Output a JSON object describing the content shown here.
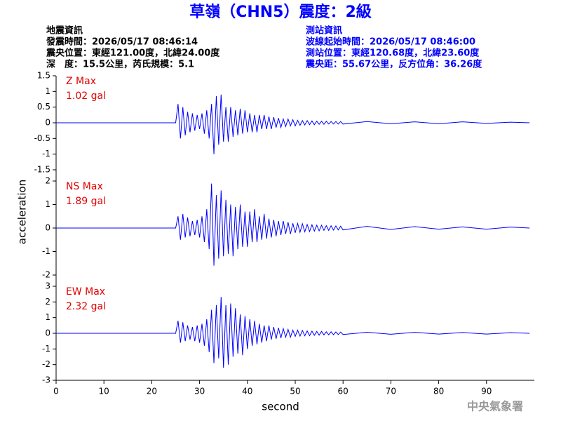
{
  "header": {
    "title": "草嶺（CHN5）震度：2級",
    "left": [
      "地震資訊",
      "發震時間：2026/05/17 08:46:14",
      "震央位置：東經121.00度，北緯24.00度",
      "深　度：15.5公里，芮氏規模：5.1"
    ],
    "right": [
      "測站資訊",
      "波線起始時間：2026/05/17 08:46:00",
      "測站位置：東經120.68度，北緯23.60度",
      "震央距：55.67公里，反方位角：36.26度"
    ],
    "watermark": "中央氣象署"
  },
  "chart_data": [
    {
      "type": "line",
      "label": "Z Max",
      "max_label": "1.02 gal",
      "x": [
        0,
        25,
        25.5,
        26,
        26.5,
        27,
        27.5,
        28,
        28.5,
        29,
        29.5,
        30,
        30.5,
        31,
        31.5,
        32,
        32.5,
        33,
        33.5,
        34,
        34.5,
        35,
        35.5,
        36,
        36.5,
        37,
        37.5,
        38,
        38.5,
        39,
        39.5,
        40,
        40.5,
        41,
        41.5,
        42,
        42.5,
        43,
        43.5,
        44,
        44.5,
        45,
        45.5,
        46,
        46.5,
        47,
        47.5,
        48,
        48.5,
        49,
        49.5,
        50,
        50.5,
        51,
        51.5,
        52,
        52.5,
        53,
        53.5,
        54,
        54.5,
        55,
        55.5,
        56,
        56.5,
        57,
        57.5,
        58,
        58.5,
        59,
        59.5,
        60,
        65,
        70,
        75,
        80,
        85,
        90,
        95,
        99
      ],
      "series": [
        {
          "color": "#0000ff",
          "values": [
            0,
            0,
            0.6,
            -0.5,
            0.5,
            -0.4,
            0.35,
            -0.3,
            0.3,
            -0.25,
            0.25,
            -0.2,
            0.3,
            -0.35,
            0.4,
            -0.5,
            0.6,
            -1.0,
            0.85,
            -0.7,
            0.9,
            -0.6,
            0.5,
            -0.6,
            0.5,
            -0.45,
            0.4,
            -0.4,
            0.45,
            -0.35,
            0.4,
            -0.3,
            0.3,
            -0.3,
            0.25,
            -0.3,
            0.25,
            -0.2,
            0.25,
            -0.2,
            0.2,
            -0.2,
            0.18,
            -0.15,
            0.15,
            -0.15,
            0.12,
            -0.12,
            0.12,
            -0.1,
            0.1,
            -0.1,
            0.08,
            -0.08,
            0.07,
            -0.07,
            0.07,
            -0.06,
            0.06,
            -0.06,
            0.05,
            -0.05,
            0.05,
            -0.05,
            0.05,
            -0.04,
            0.04,
            -0.04,
            0.04,
            -0.04,
            0.04,
            -0.04,
            0.04,
            -0.03,
            0.03,
            -0.03,
            0.03,
            -0.02,
            0.02,
            0
          ]
        }
      ],
      "xlim": [
        0,
        100
      ],
      "ylim": [
        -1.5,
        1.5
      ],
      "yticks": [
        -1.5,
        -1,
        -0.5,
        0,
        0.5,
        1,
        1.5
      ]
    },
    {
      "type": "line",
      "label": "NS Max",
      "max_label": "1.89 gal",
      "ylabel": "acceleration",
      "x": [
        0,
        25,
        25.5,
        26,
        26.5,
        27,
        27.5,
        28,
        28.5,
        29,
        29.5,
        30,
        30.5,
        31,
        31.5,
        32,
        32.5,
        33,
        33.5,
        34,
        34.5,
        35,
        35.5,
        36,
        36.5,
        37,
        37.5,
        38,
        38.5,
        39,
        39.5,
        40,
        40.5,
        41,
        41.5,
        42,
        42.5,
        43,
        43.5,
        44,
        44.5,
        45,
        45.5,
        46,
        46.5,
        47,
        47.5,
        48,
        48.5,
        49,
        49.5,
        50,
        50.5,
        51,
        51.5,
        52,
        52.5,
        53,
        53.5,
        54,
        54.5,
        55,
        55.5,
        56,
        56.5,
        57,
        57.5,
        58,
        58.5,
        59,
        59.5,
        60,
        65,
        70,
        75,
        80,
        85,
        90,
        95,
        99
      ],
      "series": [
        {
          "color": "#0000ff",
          "values": [
            0,
            0,
            0.5,
            -0.5,
            0.6,
            -0.4,
            0.45,
            -0.35,
            0.3,
            -0.3,
            0.35,
            -0.4,
            0.5,
            -0.6,
            0.8,
            -0.9,
            1.89,
            -1.6,
            1.4,
            -1.3,
            1.6,
            -1.2,
            1.2,
            -1.1,
            1.0,
            -1.2,
            0.9,
            -0.9,
            1.0,
            -0.8,
            0.7,
            -0.8,
            0.7,
            -0.6,
            0.8,
            -0.6,
            0.5,
            -0.5,
            0.6,
            -0.45,
            0.4,
            -0.4,
            0.35,
            -0.35,
            0.3,
            -0.3,
            0.3,
            -0.25,
            0.25,
            -0.25,
            0.2,
            -0.2,
            0.2,
            -0.18,
            0.18,
            -0.16,
            0.15,
            -0.15,
            0.14,
            -0.13,
            0.12,
            -0.12,
            0.12,
            -0.1,
            0.1,
            -0.1,
            0.1,
            -0.09,
            0.09,
            -0.08,
            0.08,
            -0.08,
            0.07,
            -0.06,
            0.06,
            -0.05,
            0.05,
            -0.05,
            0.04,
            0
          ]
        }
      ],
      "xlim": [
        0,
        100
      ],
      "ylim": [
        -2,
        2
      ],
      "yticks": [
        -2,
        -1,
        0,
        1,
        2
      ]
    },
    {
      "type": "line",
      "label": "EW Max",
      "max_label": "2.32 gal",
      "xlabel": "second",
      "x": [
        0,
        25,
        25.5,
        26,
        26.5,
        27,
        27.5,
        28,
        28.5,
        29,
        29.5,
        30,
        30.5,
        31,
        31.5,
        32,
        32.5,
        33,
        33.5,
        34,
        34.5,
        35,
        35.5,
        36,
        36.5,
        37,
        37.5,
        38,
        38.5,
        39,
        39.5,
        40,
        40.5,
        41,
        41.5,
        42,
        42.5,
        43,
        43.5,
        44,
        44.5,
        45,
        45.5,
        46,
        46.5,
        47,
        47.5,
        48,
        48.5,
        49,
        49.5,
        50,
        50.5,
        51,
        51.5,
        52,
        52.5,
        53,
        53.5,
        54,
        54.5,
        55,
        55.5,
        56,
        56.5,
        57,
        57.5,
        58,
        58.5,
        59,
        59.5,
        60,
        65,
        70,
        75,
        80,
        85,
        90,
        95,
        99
      ],
      "series": [
        {
          "color": "#0000ff",
          "values": [
            0,
            0,
            0.8,
            -0.6,
            0.7,
            -0.5,
            0.5,
            -0.4,
            0.4,
            -0.5,
            0.5,
            -0.6,
            0.6,
            -0.8,
            0.9,
            -1.2,
            1.5,
            -1.9,
            1.8,
            -1.6,
            2.32,
            -2.2,
            1.8,
            -2.0,
            1.9,
            -1.5,
            1.6,
            -1.3,
            1.2,
            -1.4,
            1.1,
            -1.0,
            0.9,
            -0.8,
            0.8,
            -0.7,
            0.6,
            -0.6,
            0.5,
            -0.5,
            0.5,
            -0.4,
            0.4,
            -0.35,
            0.35,
            -0.3,
            0.3,
            -0.25,
            0.25,
            -0.25,
            0.2,
            -0.2,
            0.2,
            -0.18,
            0.18,
            -0.16,
            0.15,
            -0.15,
            0.14,
            -0.13,
            0.12,
            -0.12,
            0.12,
            -0.1,
            0.1,
            -0.1,
            0.1,
            -0.09,
            0.09,
            -0.08,
            0.08,
            -0.08,
            0.07,
            -0.06,
            0.06,
            -0.05,
            0.05,
            -0.05,
            0.04,
            0
          ]
        }
      ],
      "xlim": [
        0,
        100
      ],
      "ylim": [
        -3,
        3
      ],
      "yticks": [
        -3,
        -2,
        -1,
        0,
        1,
        2,
        3
      ],
      "xticks": [
        0,
        10,
        20,
        30,
        40,
        50,
        60,
        70,
        80,
        90
      ]
    }
  ]
}
